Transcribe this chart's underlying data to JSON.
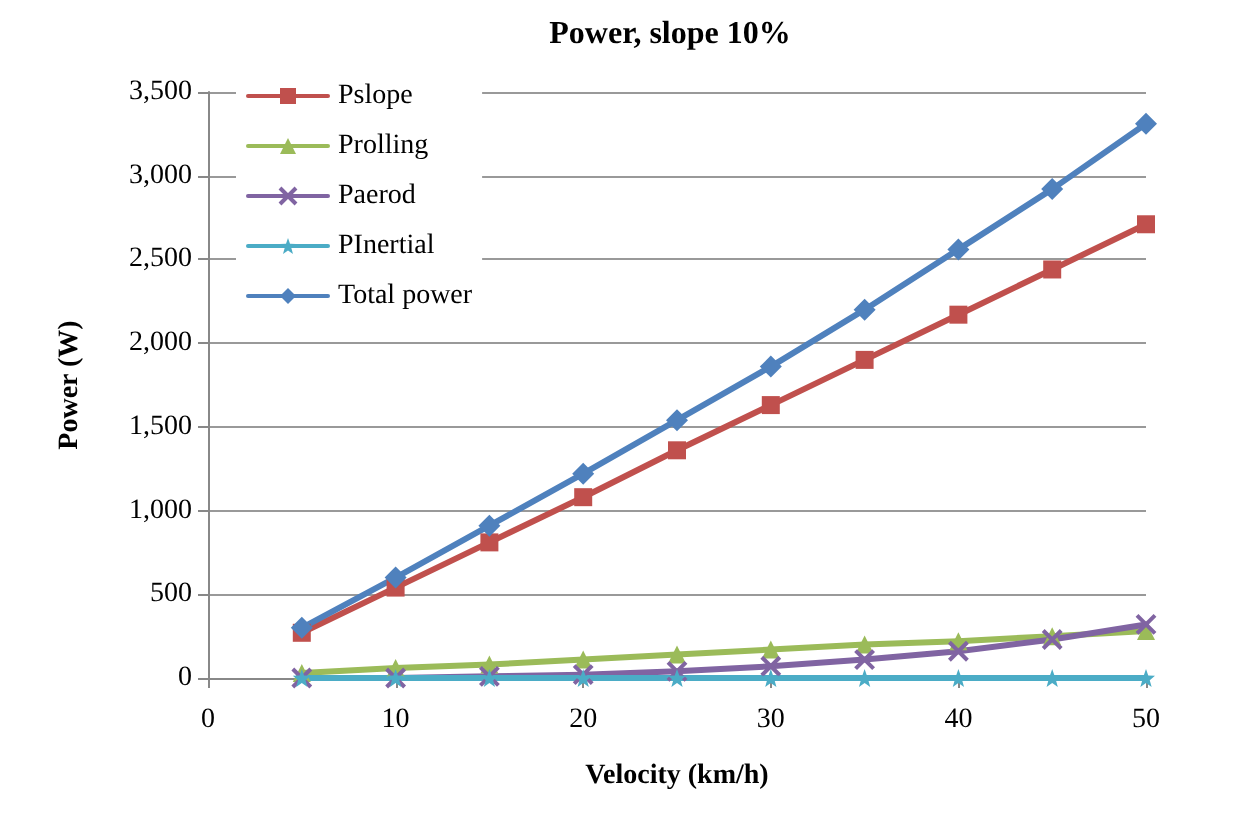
{
  "chart_data": {
    "type": "line",
    "title": "Power, slope 10%",
    "xlabel": "Velocity (km/h)",
    "ylabel": "Power (W)",
    "x": [
      5,
      10,
      15,
      20,
      25,
      30,
      35,
      40,
      45,
      50
    ],
    "xlim": [
      0,
      50
    ],
    "xticks": [
      0,
      10,
      20,
      30,
      40,
      50
    ],
    "ylim": [
      0,
      3500
    ],
    "yticks": [
      0,
      {
        "value": 500,
        "label": "500"
      },
      {
        "value": 1000,
        "label": "1,000"
      },
      {
        "value": 1500,
        "label": "1,500"
      },
      {
        "value": 2000,
        "label": "2,000"
      },
      {
        "value": 2500,
        "label": "2,500"
      },
      {
        "value": 3000,
        "label": "3,000"
      },
      {
        "value": 3500,
        "label": "3,500"
      }
    ],
    "grid": "y",
    "legend": "top left",
    "series": [
      {
        "name": "Pslope",
        "color": "#c0504d",
        "marker": "square",
        "values": [
          270,
          540,
          810,
          1080,
          1360,
          1630,
          1900,
          2170,
          2440,
          2710
        ]
      },
      {
        "name": "Prolling",
        "color": "#9bbb59",
        "marker": "triangle",
        "values": [
          30,
          60,
          80,
          110,
          140,
          170,
          200,
          220,
          250,
          280
        ]
      },
      {
        "name": "Paerod",
        "color": "#8064a2",
        "marker": "cross",
        "values": [
          0,
          0,
          10,
          20,
          40,
          70,
          110,
          160,
          230,
          320
        ]
      },
      {
        "name": "PInertial",
        "color": "#4bacc6",
        "marker": "star",
        "values": [
          0,
          0,
          0,
          0,
          0,
          0,
          0,
          0,
          0,
          0
        ]
      },
      {
        "name": "Total power",
        "color": "#4f81bd",
        "marker": "diamond",
        "values": [
          300,
          600,
          910,
          1220,
          1540,
          1860,
          2200,
          2560,
          2920,
          3310
        ]
      }
    ]
  }
}
